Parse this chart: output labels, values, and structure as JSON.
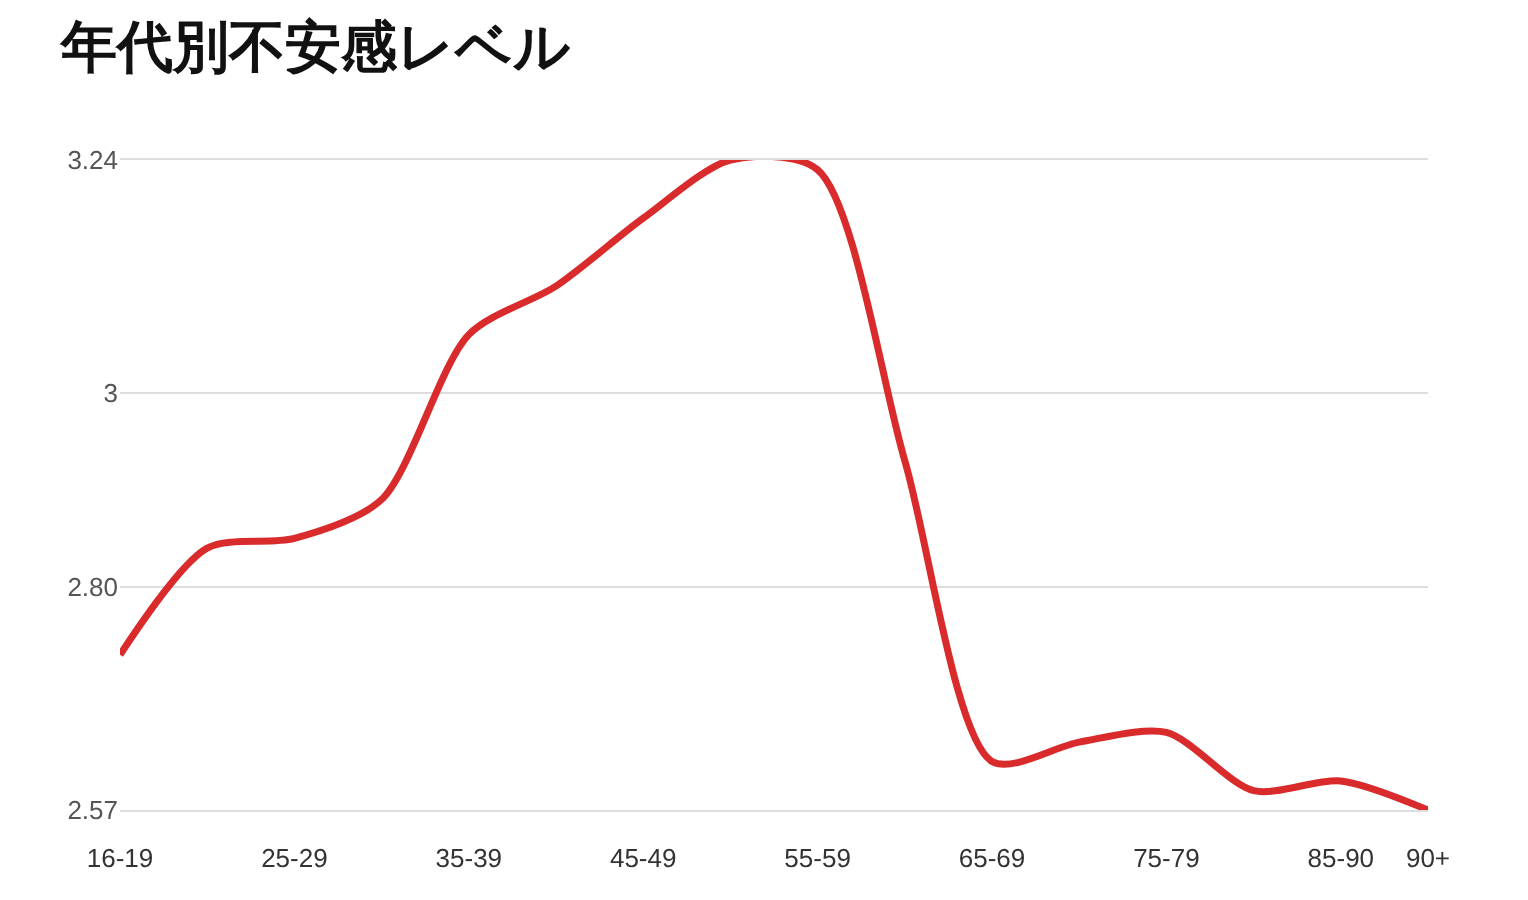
{
  "chart_data": {
    "type": "line",
    "title": "年代別不安感レベル",
    "categories": [
      "16-19",
      null,
      "25-29",
      null,
      "35-39",
      null,
      "45-49",
      null,
      "55-59",
      null,
      "65-69",
      null,
      "75-79",
      null,
      "85-90",
      "90+"
    ],
    "series": [
      {
        "color": "#d92b2b",
        "values": [
          2.73,
          2.84,
          2.85,
          2.89,
          3.06,
          3.11,
          3.18,
          3.24,
          3.23,
          2.93,
          2.62,
          2.64,
          2.65,
          2.59,
          2.6,
          2.57
        ]
      }
    ],
    "ylim": [
      2.57,
      3.24
    ],
    "yticks": [
      3.24,
      3,
      {
        "value": 2.8,
        "label": "2.80"
      },
      2.57
    ],
    "grid": "y",
    "marker": "none",
    "line_style": "solid"
  }
}
